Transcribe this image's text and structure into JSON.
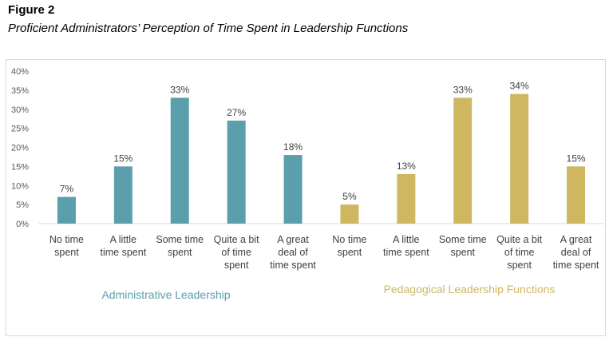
{
  "figure": {
    "label": "Figure 2",
    "title": "Proficient Administrators’ Perception of Time Spent in Leadership Functions"
  },
  "colors": {
    "administrative": "#5b9fad",
    "pedagogical": "#cfb762",
    "grid": "#d9d9d9"
  },
  "chart_data": {
    "type": "bar",
    "title": "Proficient Administrators’ Perception of Time Spent in Leadership Functions",
    "ylim": [
      0,
      40
    ],
    "yticks": [
      "0%",
      "5%",
      "10%",
      "15%",
      "20%",
      "25%",
      "30%",
      "35%",
      "40%"
    ],
    "grid": false,
    "groups": [
      {
        "name": "Administrative Leadership",
        "categories": [
          [
            "No time",
            "spent"
          ],
          [
            "A little",
            "time spent"
          ],
          [
            "Some time",
            "spent"
          ],
          [
            "Quite a bit",
            "of time",
            "spent"
          ],
          [
            "A great",
            "deal of",
            "time spent"
          ]
        ],
        "values": [
          7,
          15,
          33,
          27,
          18
        ],
        "labels": [
          "7%",
          "15%",
          "33%",
          "27%",
          "18%"
        ]
      },
      {
        "name": "Pedagogical Leadership Functions",
        "categories": [
          [
            "No time",
            "spent"
          ],
          [
            "A little",
            "time spent"
          ],
          [
            "Some time",
            "spent"
          ],
          [
            "Quite a bit",
            "of time",
            "spent"
          ],
          [
            "A great",
            "deal of",
            "time spent"
          ]
        ],
        "values": [
          5,
          13,
          33,
          34,
          15
        ],
        "labels": [
          "5%",
          "13%",
          "33%",
          "34%",
          "15%"
        ]
      }
    ]
  }
}
